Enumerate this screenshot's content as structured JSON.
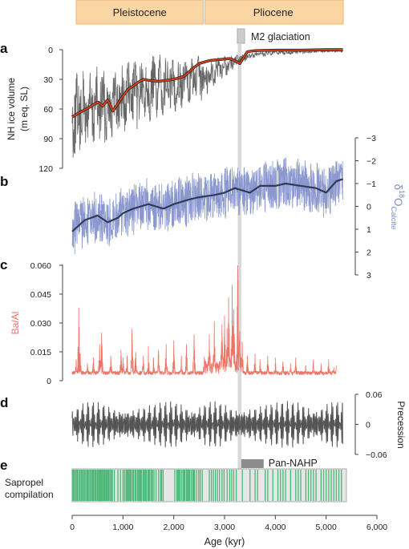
{
  "colors": {
    "epoch_fill": "#fbd5a3",
    "epoch_stroke": "#f0b46a",
    "ice_raw": "#666666",
    "ice_smooth": "#d6411d",
    "d18o_raw": "#8b98cf",
    "d18o_smooth": "#2f3a55",
    "d18o_label": "#7f8cc8",
    "baal": "#ee7468",
    "precession": "#555555",
    "sapropel": "#4cb877",
    "sapropel_box": "#e6e6e6",
    "m2_band": "#d9d9d9",
    "pan_nahp": "#8c8c8c"
  },
  "epochs": [
    {
      "name": "Pleistocene",
      "start": 0,
      "end": 2580
    },
    {
      "name": "Pliocene",
      "start": 2580,
      "end": 5333
    }
  ],
  "annotations": {
    "m2": {
      "label": "M2 glaciation",
      "start": 3260,
      "end": 3330
    },
    "pan_nahp": {
      "label": "Pan-NAHP",
      "start": 3330,
      "end": 3770
    }
  },
  "panel_letters": [
    "a",
    "b",
    "c",
    "d",
    "e"
  ],
  "chart_data": [
    {
      "panel": "a",
      "type": "line",
      "ylabel_line1": "NH ice volume",
      "ylabel_line2": "(m eq. SL)",
      "ylim": [
        0,
        120
      ],
      "inverted": true,
      "yticks": [
        0,
        30,
        60,
        90,
        120
      ],
      "series": [
        {
          "kind": "raw",
          "x": [
            0,
            500,
            1000,
            1500,
            2000,
            2500,
            2800,
            3000,
            3200,
            3300,
            3500,
            4000,
            4500,
            5000,
            5330
          ],
          "amplitude": [
            45,
            44,
            40,
            36,
            30,
            24,
            16,
            12,
            8,
            6,
            4,
            3,
            2.5,
            2,
            2
          ],
          "values": [
            68,
            58,
            50,
            40,
            35,
            30,
            23,
            17,
            12,
            10,
            6,
            3,
            2,
            1,
            1
          ]
        },
        {
          "kind": "smoothed",
          "x": [
            0,
            200,
            350,
            500,
            600,
            700,
            800,
            1000,
            1100,
            1200,
            1300,
            1400,
            1500,
            1700,
            2000,
            2200,
            2400,
            2500,
            2700,
            2900,
            3100,
            3200,
            3300,
            3450,
            3600,
            4000,
            4500,
            5000,
            5330
          ],
          "values": [
            68,
            62,
            58,
            53,
            57,
            51,
            62,
            47,
            40,
            37,
            33,
            30,
            31,
            32,
            30,
            27,
            18,
            14,
            11,
            10,
            9,
            11,
            14,
            2,
            1,
            0.5,
            0.5,
            0,
            0
          ]
        }
      ]
    },
    {
      "panel": "b",
      "type": "line",
      "ylabel_main": "δ",
      "ylabel_sup": "18",
      "ylabel_rest": "O",
      "ylabel_sub": "Calcite",
      "ylim": [
        -3,
        3
      ],
      "inverted": true,
      "axis_side": "right",
      "yticks": [
        -3,
        -2,
        -1,
        0,
        1,
        2,
        3
      ],
      "series": [
        {
          "kind": "raw",
          "amplitude": 1.2,
          "note": "noisy",
          "x": [
            0,
            250,
            500,
            700,
            900,
            1000,
            1200,
            1500,
            1800,
            2000,
            2300,
            2500,
            2800,
            3000,
            3200,
            3500,
            3700,
            4000,
            4200,
            4500,
            4800,
            5000,
            5200,
            5330
          ],
          "values": [
            1.1,
            0.6,
            0.4,
            0.7,
            0.5,
            0.3,
            0.1,
            -0.1,
            0.1,
            -0.1,
            -0.3,
            -0.4,
            -0.5,
            -0.6,
            -0.8,
            -0.6,
            -0.9,
            -0.9,
            -1.0,
            -0.9,
            -0.8,
            -0.6,
            -1.1,
            -1.2
          ]
        },
        {
          "kind": "smoothed",
          "x": [
            0,
            250,
            500,
            700,
            900,
            1000,
            1200,
            1500,
            1800,
            2000,
            2300,
            2500,
            2800,
            3000,
            3200,
            3500,
            3700,
            4000,
            4200,
            4500,
            4800,
            5000,
            5200,
            5330
          ],
          "values": [
            1.1,
            0.6,
            0.4,
            0.7,
            0.5,
            0.3,
            0.1,
            -0.1,
            0.1,
            -0.1,
            -0.3,
            -0.4,
            -0.5,
            -0.6,
            -0.8,
            -0.6,
            -0.9,
            -0.9,
            -1.0,
            -0.9,
            -0.8,
            -0.6,
            -1.1,
            -1.2
          ]
        }
      ]
    },
    {
      "panel": "c",
      "type": "line",
      "ylabel": "Ba/Al",
      "ylim": [
        0,
        0.06
      ],
      "yticks": [
        "0.060",
        "0.045",
        "0.030",
        "0.015",
        "0"
      ],
      "ytick_values": [
        0.06,
        0.045,
        0.03,
        0.015,
        0
      ],
      "baseline": 0.003,
      "peaks": [
        [
          80,
          0.011
        ],
        [
          130,
          0.038
        ],
        [
          160,
          0.014
        ],
        [
          300,
          0.009
        ],
        [
          420,
          0.012
        ],
        [
          540,
          0.019
        ],
        [
          580,
          0.025
        ],
        [
          760,
          0.013
        ],
        [
          960,
          0.016
        ],
        [
          1000,
          0.012
        ],
        [
          1080,
          0.013
        ],
        [
          1180,
          0.027
        ],
        [
          1250,
          0.015
        ],
        [
          1400,
          0.013
        ],
        [
          1500,
          0.018
        ],
        [
          1600,
          0.012
        ],
        [
          1700,
          0.016
        ],
        [
          1850,
          0.019
        ],
        [
          2000,
          0.021
        ],
        [
          2150,
          0.013
        ],
        [
          2250,
          0.019
        ],
        [
          2400,
          0.024
        ],
        [
          2600,
          0.012
        ],
        [
          2700,
          0.02
        ],
        [
          2800,
          0.028
        ],
        [
          2950,
          0.024
        ],
        [
          3000,
          0.03
        ],
        [
          3050,
          0.022
        ],
        [
          3080,
          0.041
        ],
        [
          3150,
          0.044
        ],
        [
          3180,
          0.035
        ],
        [
          3260,
          0.061
        ],
        [
          3300,
          0.025
        ],
        [
          3350,
          0.018
        ],
        [
          3450,
          0.013
        ],
        [
          3600,
          0.014
        ],
        [
          3700,
          0.011
        ],
        [
          3850,
          0.013
        ],
        [
          4000,
          0.012
        ],
        [
          4150,
          0.01
        ],
        [
          4300,
          0.009
        ],
        [
          4400,
          0.012
        ],
        [
          4600,
          0.008
        ],
        [
          4750,
          0.011
        ],
        [
          4900,
          0.009
        ],
        [
          5050,
          0.011
        ],
        [
          5150,
          0.007
        ],
        [
          5200,
          0.008
        ]
      ]
    },
    {
      "panel": "d",
      "type": "line",
      "ylabel": "Precession",
      "ylim": [
        -0.06,
        0.06
      ],
      "axis_side": "right",
      "yticks": [
        "0.06",
        "0",
        "−0.06"
      ],
      "ytick_values": [
        0.06,
        0,
        -0.06
      ],
      "period_kyr": [
        23,
        19
      ],
      "envelope_period_kyr": 100,
      "amplitude_range": [
        0.015,
        0.047
      ]
    },
    {
      "panel": "e",
      "type": "bar",
      "label_line1": "Sapropel",
      "label_line2": "compilation",
      "sapropels_kyr": [
        5,
        15,
        30,
        55,
        80,
        100,
        125,
        150,
        175,
        195,
        220,
        240,
        265,
        290,
        310,
        330,
        355,
        380,
        400,
        420,
        445,
        465,
        490,
        505,
        525,
        545,
        560,
        580,
        600,
        620,
        640,
        660,
        680,
        700,
        720,
        745,
        770,
        790,
        830,
        900,
        950,
        1000,
        1030,
        1060,
        1080,
        1100,
        1120,
        1140,
        1160,
        1190,
        1210,
        1240,
        1260,
        1290,
        1310,
        1330,
        1350,
        1370,
        1400,
        1420,
        1440,
        1460,
        1490,
        1510,
        1530,
        1560,
        1580,
        1610,
        1650,
        1700,
        1740,
        1760,
        1790,
        2020,
        2060,
        2080,
        2100,
        2120,
        2150,
        2180,
        2200,
        2220,
        2250,
        2270,
        2290,
        2310,
        2340,
        2370,
        2390,
        2410,
        2450,
        2490,
        2520,
        2560,
        2700,
        2740,
        2780,
        2820,
        2860,
        2900,
        2950,
        2990,
        3050,
        3100,
        3140,
        3180,
        3230,
        3350,
        3500,
        3600,
        3650,
        3800,
        3850,
        3950,
        4050,
        4100,
        4150,
        4200,
        4300,
        4400,
        4450,
        4500,
        4600,
        4650,
        4700,
        4750,
        4800,
        4900,
        4950,
        5000,
        5050,
        5100,
        5150,
        5200,
        5250,
        5300
      ]
    }
  ],
  "x_axis": {
    "label": "Age (kyr)",
    "xlim": [
      0,
      6000
    ],
    "ticks": [
      0,
      1000,
      2000,
      3000,
      4000,
      5000,
      6000
    ],
    "tick_labels": [
      "0",
      "1,000",
      "2,000",
      "3,000",
      "4,000",
      "5,000",
      "6,000"
    ]
  }
}
